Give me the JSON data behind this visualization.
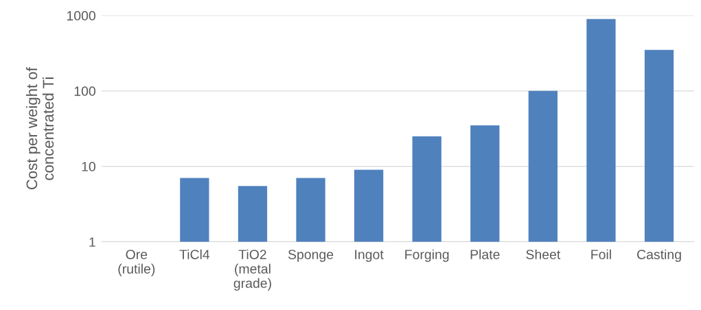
{
  "chart_data": {
    "type": "bar",
    "ylabel": "Cost per weight of\nconcentrated Ti",
    "categories": [
      "Ore\n(rutile)",
      "TiCl4",
      "TiO2\n(metal\ngrade)",
      "Sponge",
      "Ingot",
      "Forging",
      "Plate",
      "Sheet",
      "Foil",
      "Casting"
    ],
    "values": [
      null,
      7,
      5.5,
      7,
      9,
      25,
      35,
      100,
      900,
      350
    ],
    "color": "#4f81bd",
    "log": true,
    "ylim": [
      1,
      1000
    ],
    "yticks": [
      1,
      10,
      100,
      1000
    ],
    "grid": "y"
  }
}
